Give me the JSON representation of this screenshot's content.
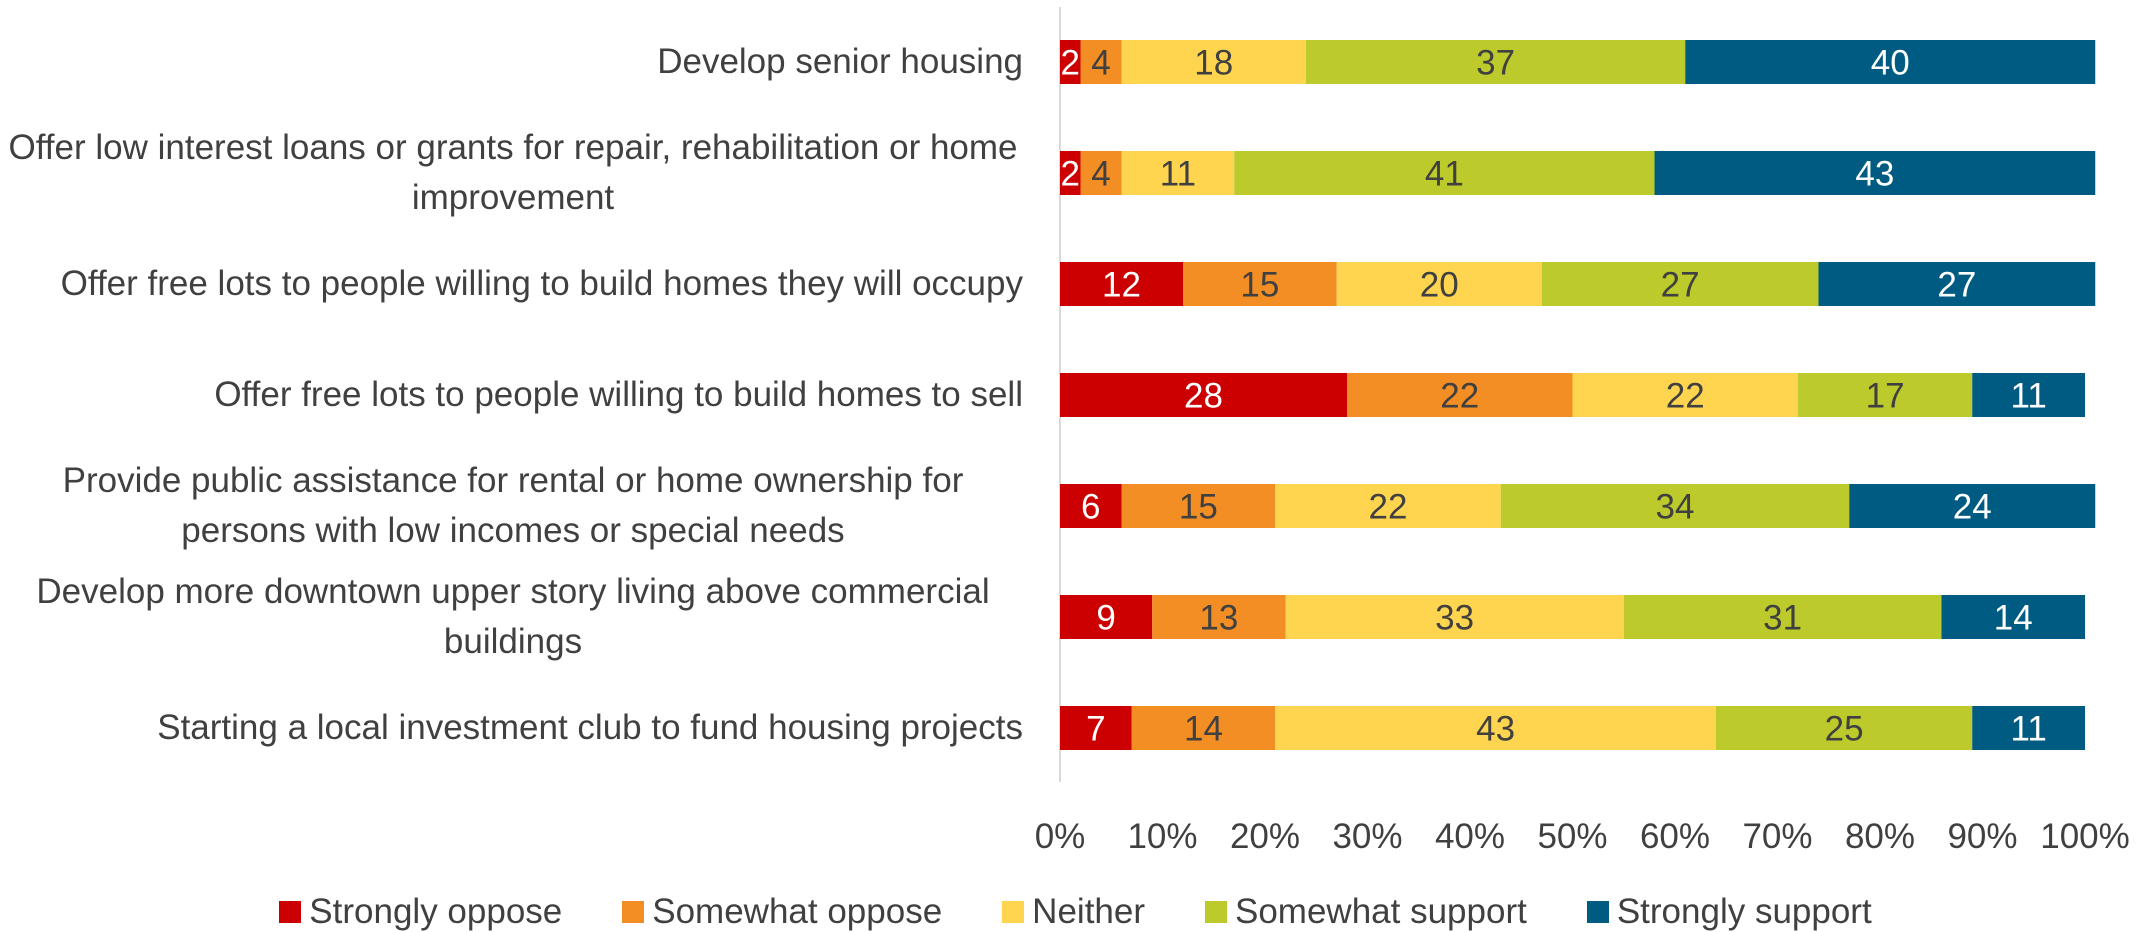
{
  "chart_data": {
    "type": "stacked_bar_horizontal",
    "categories": [
      "Develop senior housing",
      "Offer low interest loans or grants for repair, rehabilitation or home improvement",
      "Offer free lots to people willing to build homes they will occupy",
      "Offer free lots to people willing to build homes to sell",
      "Provide public assistance for rental or home ownership for persons with low incomes or special needs",
      "Develop more downtown upper story living above commercial buildings",
      "Starting a local investment club to fund housing projects"
    ],
    "series": [
      {
        "name": "Strongly oppose",
        "color": "#cc0000",
        "values": [
          2,
          2,
          12,
          28,
          6,
          9,
          7
        ]
      },
      {
        "name": "Somewhat oppose",
        "color": "#f28e24",
        "values": [
          4,
          4,
          15,
          22,
          15,
          13,
          14
        ]
      },
      {
        "name": "Neither",
        "color": "#ffd54f",
        "values": [
          18,
          11,
          20,
          22,
          22,
          33,
          43
        ]
      },
      {
        "name": "Somewhat support",
        "color": "#bccb2b",
        "values": [
          37,
          41,
          27,
          17,
          34,
          31,
          25
        ]
      },
      {
        "name": "Strongly support",
        "color": "#005b82",
        "values": [
          40,
          43,
          27,
          11,
          24,
          14,
          11
        ]
      }
    ],
    "xlim": [
      0,
      100
    ],
    "xticks": [
      {
        "value": 0,
        "label": "0%"
      },
      {
        "value": 10,
        "label": "10%"
      },
      {
        "value": 20,
        "label": "20%"
      },
      {
        "value": 30,
        "label": "30%"
      },
      {
        "value": 40,
        "label": "40%"
      },
      {
        "value": 50,
        "label": "50%"
      },
      {
        "value": 60,
        "label": "60%"
      },
      {
        "value": 70,
        "label": "70%"
      },
      {
        "value": 80,
        "label": "80%"
      },
      {
        "value": 90,
        "label": "90%"
      },
      {
        "value": 100,
        "label": "100%"
      }
    ],
    "legend": "bottom",
    "data_labels": true
  }
}
